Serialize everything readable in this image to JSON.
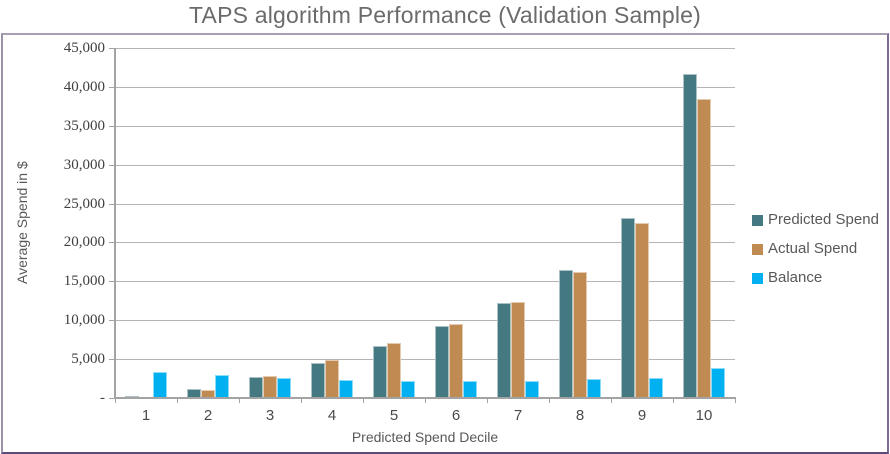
{
  "chart_data": {
    "type": "bar",
    "title": "TAPS algorithm Performance (Validation Sample)",
    "xlabel": "Predicted Spend Decile",
    "ylabel": "Average Spend in $",
    "categories": [
      "1",
      "2",
      "3",
      "4",
      "5",
      "6",
      "7",
      "8",
      "9",
      "10"
    ],
    "series": [
      {
        "name": "Predicted Spend",
        "color": "#457982",
        "values": [
          250,
          1200,
          2700,
          4550,
          6700,
          9200,
          12200,
          16500,
          23200,
          41600
        ]
      },
      {
        "name": "Actual Spend",
        "color": "#C08B52",
        "values": [
          150,
          1000,
          2800,
          4900,
          7050,
          9500,
          12300,
          16200,
          22500,
          38400
        ]
      },
      {
        "name": "Balance",
        "color": "#00B0F0",
        "values": [
          3300,
          3000,
          2600,
          2350,
          2250,
          2250,
          2250,
          2400,
          2600,
          3900
        ]
      }
    ],
    "ylim": [
      0,
      45000
    ],
    "ytick_step": 5000,
    "ytick_labels": [
      "-",
      "5,000",
      "10,000",
      "15,000",
      "20,000",
      "25,000",
      "30,000",
      "35,000",
      "40,000",
      "45,000"
    ],
    "grid": true,
    "legend_position": "right"
  },
  "colors": {
    "gridline": "#B3B3B3",
    "axis": "#A3A3A3",
    "title_text": "#6B6B6B",
    "frame_border": "#6E5C8A"
  }
}
